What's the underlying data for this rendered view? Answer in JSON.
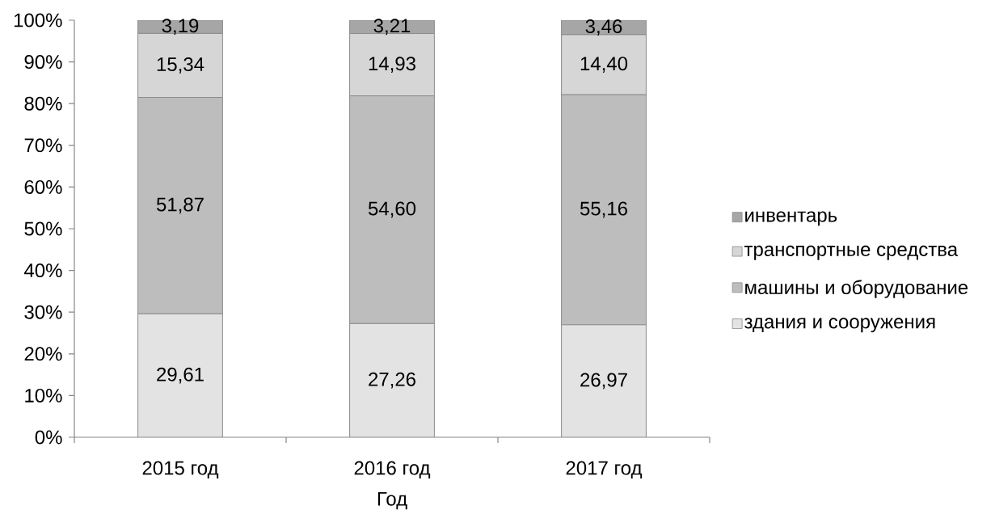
{
  "chart_data": {
    "type": "bar",
    "stacked": true,
    "xlabel": "Год",
    "categories": [
      "2015 год",
      "2016 год",
      "2017 год"
    ],
    "series": [
      {
        "name": "здания и сооружения",
        "color": "#e3e3e3",
        "values": [
          29.61,
          27.26,
          26.97
        ],
        "value_labels": [
          "29,61",
          "27,26",
          "26,97"
        ]
      },
      {
        "name": "машины и оборудование",
        "color": "#bdbdbd",
        "values": [
          51.87,
          54.6,
          55.16
        ],
        "value_labels": [
          "51,87",
          "54,60",
          "55,16"
        ]
      },
      {
        "name": "транспортные средства",
        "color": "#d6d6d6",
        "values": [
          15.34,
          14.93,
          14.4
        ],
        "value_labels": [
          "15,34",
          "14,93",
          "14,40"
        ]
      },
      {
        "name": "инвентарь",
        "color": "#a6a6a6",
        "values": [
          3.19,
          3.21,
          3.46
        ],
        "value_labels": [
          "3,19",
          "3,21",
          "3,46"
        ]
      }
    ],
    "ylim": [
      0,
      100
    ],
    "yticks": [
      {
        "value": 0,
        "label": "0%"
      },
      {
        "value": 10,
        "label": "10%"
      },
      {
        "value": 20,
        "label": "20%"
      },
      {
        "value": 30,
        "label": "30%"
      },
      {
        "value": 40,
        "label": "40%"
      },
      {
        "value": 50,
        "label": "50%"
      },
      {
        "value": 60,
        "label": "60%"
      },
      {
        "value": 70,
        "label": "70%"
      },
      {
        "value": 80,
        "label": "80%"
      },
      {
        "value": 90,
        "label": "90%"
      },
      {
        "value": 100,
        "label": "100%"
      }
    ],
    "legend": "right"
  }
}
